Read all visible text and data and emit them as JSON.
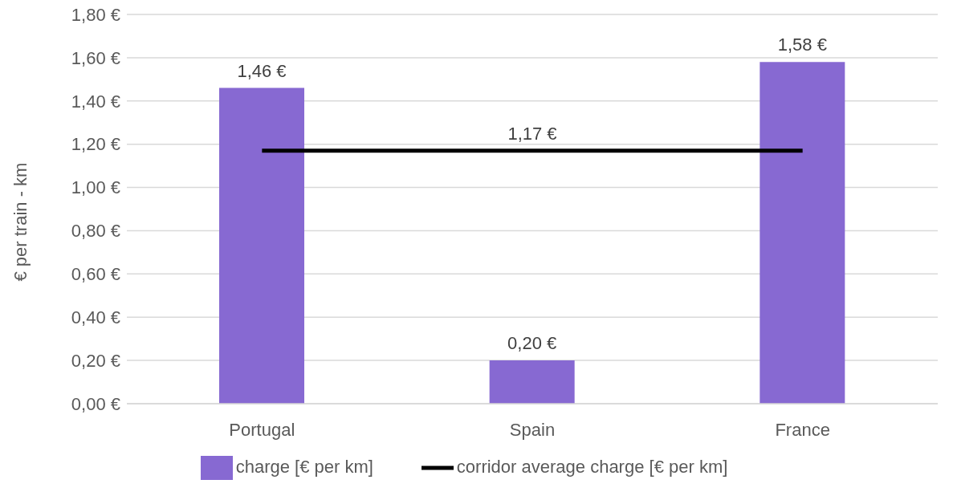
{
  "chart_data": {
    "type": "bar",
    "categories": [
      "Portugal",
      "Spain",
      "France"
    ],
    "ylabel": "€ per train - km",
    "series": [
      {
        "name": "charge [€ per km]",
        "color": "#8769d2",
        "values": [
          1.46,
          0.2,
          1.58
        ],
        "value_labels": [
          "1,46 €",
          "0,20 €",
          "1,58 €"
        ]
      },
      {
        "name": "corridor average charge [€ per km]",
        "type": "line",
        "color": "#000000",
        "values": [
          1.17,
          1.17,
          1.17
        ],
        "value_labels": [
          null,
          "1,17 €",
          null
        ]
      }
    ],
    "ylim": [
      0,
      1.8
    ],
    "yticks": [
      {
        "value": 0,
        "label": "0,00 €"
      },
      {
        "value": 0.2,
        "label": "0,20 €"
      },
      {
        "value": 0.4,
        "label": "0,40 €"
      },
      {
        "value": 0.6,
        "label": "0,60 €"
      },
      {
        "value": 0.8,
        "label": "0,80 €"
      },
      {
        "value": 1.0,
        "label": "1,00 €"
      },
      {
        "value": 1.2,
        "label": "1,20 €"
      },
      {
        "value": 1.4,
        "label": "1,40 €"
      },
      {
        "value": 1.6,
        "label": "1,60 €"
      },
      {
        "value": 1.8,
        "label": "1,80 €"
      }
    ],
    "grid": "y",
    "legend": "bottom",
    "marker": "none",
    "line_style": "solid"
  }
}
